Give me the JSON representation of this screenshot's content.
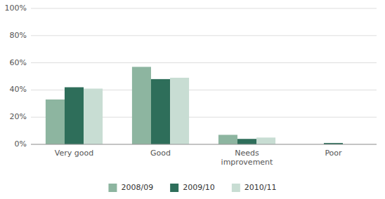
{
  "chart_data": {
    "type": "bar",
    "categories": [
      "Very good",
      "Good",
      "Needs\nimprovement",
      "Poor"
    ],
    "series": [
      {
        "name": "2008/09",
        "color": "#8DB5A0",
        "values": [
          33,
          57,
          7,
          0
        ]
      },
      {
        "name": "2009/10",
        "color": "#2E6E5A",
        "values": [
          42,
          48,
          4,
          1
        ]
      },
      {
        "name": "2010/11",
        "color": "#C8DDD3",
        "values": [
          41,
          49,
          5,
          0
        ]
      }
    ],
    "ylim": [
      0,
      100
    ],
    "yticks": [
      {
        "value": 0,
        "label": "0%"
      },
      {
        "value": 20,
        "label": "20%"
      },
      {
        "value": 40,
        "label": "40%"
      },
      {
        "value": 60,
        "label": "60%"
      },
      {
        "value": 80,
        "label": "80%"
      },
      {
        "value": 100,
        "label": "100%"
      }
    ],
    "grid": true,
    "legend": "bottom"
  }
}
